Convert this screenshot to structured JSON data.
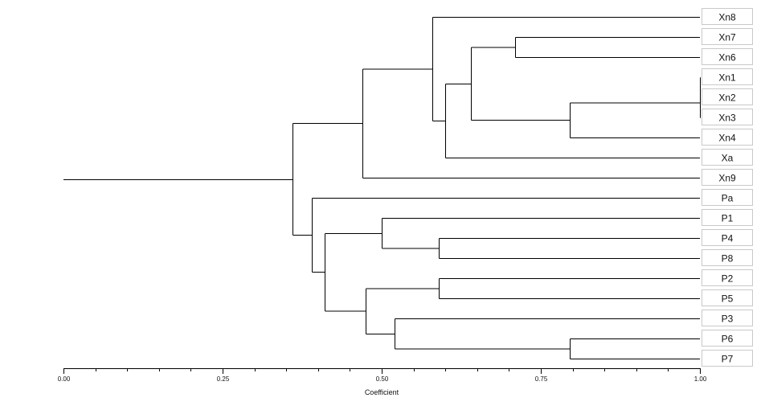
{
  "chart_data": {
    "type": "dendrogram",
    "xlabel": "Coefficient",
    "xlim": [
      0.0,
      1.0
    ],
    "ticks": [
      "0.00",
      "0.25",
      "0.50",
      "0.75",
      "1.00"
    ],
    "tick_values": [
      0.0,
      0.25,
      0.5,
      0.75,
      1.0
    ],
    "leaves": [
      "Xn8",
      "Xn7",
      "Xn6",
      "Xn1",
      "Xn2",
      "Xn3",
      "Xn4",
      "Xa",
      "Xn9",
      "Pa",
      "P1",
      "P4",
      "P8",
      "P2",
      "P5",
      "P3",
      "P6",
      "P7"
    ],
    "merges": [
      {
        "id": "c1",
        "children": [
          "Xn1",
          "Xn2"
        ],
        "height": 1.0
      },
      {
        "id": "c2",
        "children": [
          "c1",
          "Xn3"
        ],
        "height": 1.0
      },
      {
        "id": "c3",
        "children": [
          "c2",
          "Xn4"
        ],
        "height": 0.795
      },
      {
        "id": "c4",
        "children": [
          "Xn7",
          "Xn6"
        ],
        "height": 0.71
      },
      {
        "id": "c5",
        "children": [
          "c4",
          "c3"
        ],
        "height": 0.64
      },
      {
        "id": "c6",
        "children": [
          "c5",
          "Xa"
        ],
        "height": 0.6
      },
      {
        "id": "c7",
        "children": [
          "Xn8",
          "c6"
        ],
        "height": 0.58
      },
      {
        "id": "c8",
        "children": [
          "c7",
          "Xn9"
        ],
        "height": 0.47
      },
      {
        "id": "c9",
        "children": [
          "P4",
          "P8"
        ],
        "height": 0.59
      },
      {
        "id": "c10",
        "children": [
          "P1",
          "c9"
        ],
        "height": 0.5
      },
      {
        "id": "c11",
        "children": [
          "P2",
          "P5"
        ],
        "height": 0.59
      },
      {
        "id": "c12",
        "children": [
          "P6",
          "P7"
        ],
        "height": 0.795
      },
      {
        "id": "c13",
        "children": [
          "P3",
          "c12"
        ],
        "height": 0.52
      },
      {
        "id": "c14",
        "children": [
          "c11",
          "c13"
        ],
        "height": 0.475
      },
      {
        "id": "c15",
        "children": [
          "c10",
          "c14"
        ],
        "height": 0.41
      },
      {
        "id": "c16",
        "children": [
          "Pa",
          "c15"
        ],
        "height": 0.39
      },
      {
        "id": "c17",
        "children": [
          "c8",
          "c16"
        ],
        "height": 0.36
      }
    ]
  }
}
